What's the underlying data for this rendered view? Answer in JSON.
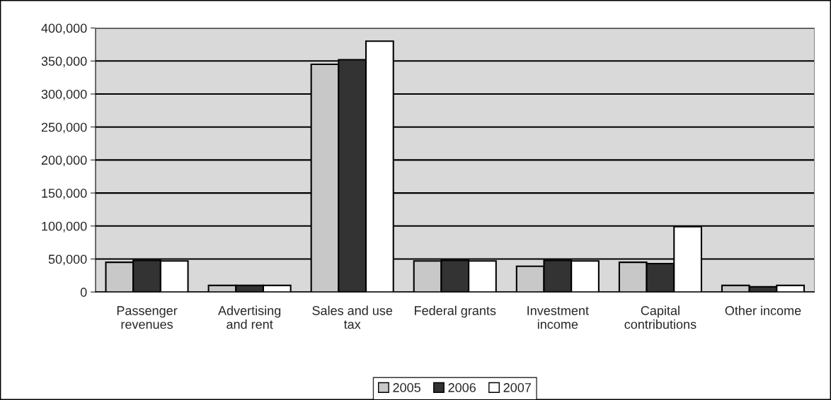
{
  "chart_data": {
    "type": "bar",
    "categories": [
      "Passenger\nrevenues",
      "Advertising\nand rent",
      "Sales and use\ntax",
      "Federal grants",
      "Investment\nincome",
      "Capital\ncontributions",
      "Other income"
    ],
    "series": [
      {
        "name": "2005",
        "color": "#c8c8c8",
        "values": [
          45000,
          10000,
          345000,
          47000,
          39000,
          45000,
          10000
        ]
      },
      {
        "name": "2006",
        "color": "#333333",
        "values": [
          48000,
          10000,
          352000,
          48000,
          48000,
          43000,
          8000
        ]
      },
      {
        "name": "2007",
        "color": "#ffffff",
        "values": [
          47000,
          10000,
          380000,
          47000,
          47000,
          99000,
          10000
        ]
      }
    ],
    "ylim": [
      0,
      400000
    ],
    "yticks": [
      {
        "value": 0,
        "label": "0"
      },
      {
        "value": 50000,
        "label": "50,000"
      },
      {
        "value": 100000,
        "label": "100,000"
      },
      {
        "value": 150000,
        "label": "150,000"
      },
      {
        "value": 200000,
        "label": "200,000"
      },
      {
        "value": 250000,
        "label": "250,000"
      },
      {
        "value": 300000,
        "label": "300,000"
      },
      {
        "value": 350000,
        "label": "350,000"
      },
      {
        "value": 400000,
        "label": "400,000"
      }
    ],
    "grid": "y",
    "legend": "bottom"
  }
}
